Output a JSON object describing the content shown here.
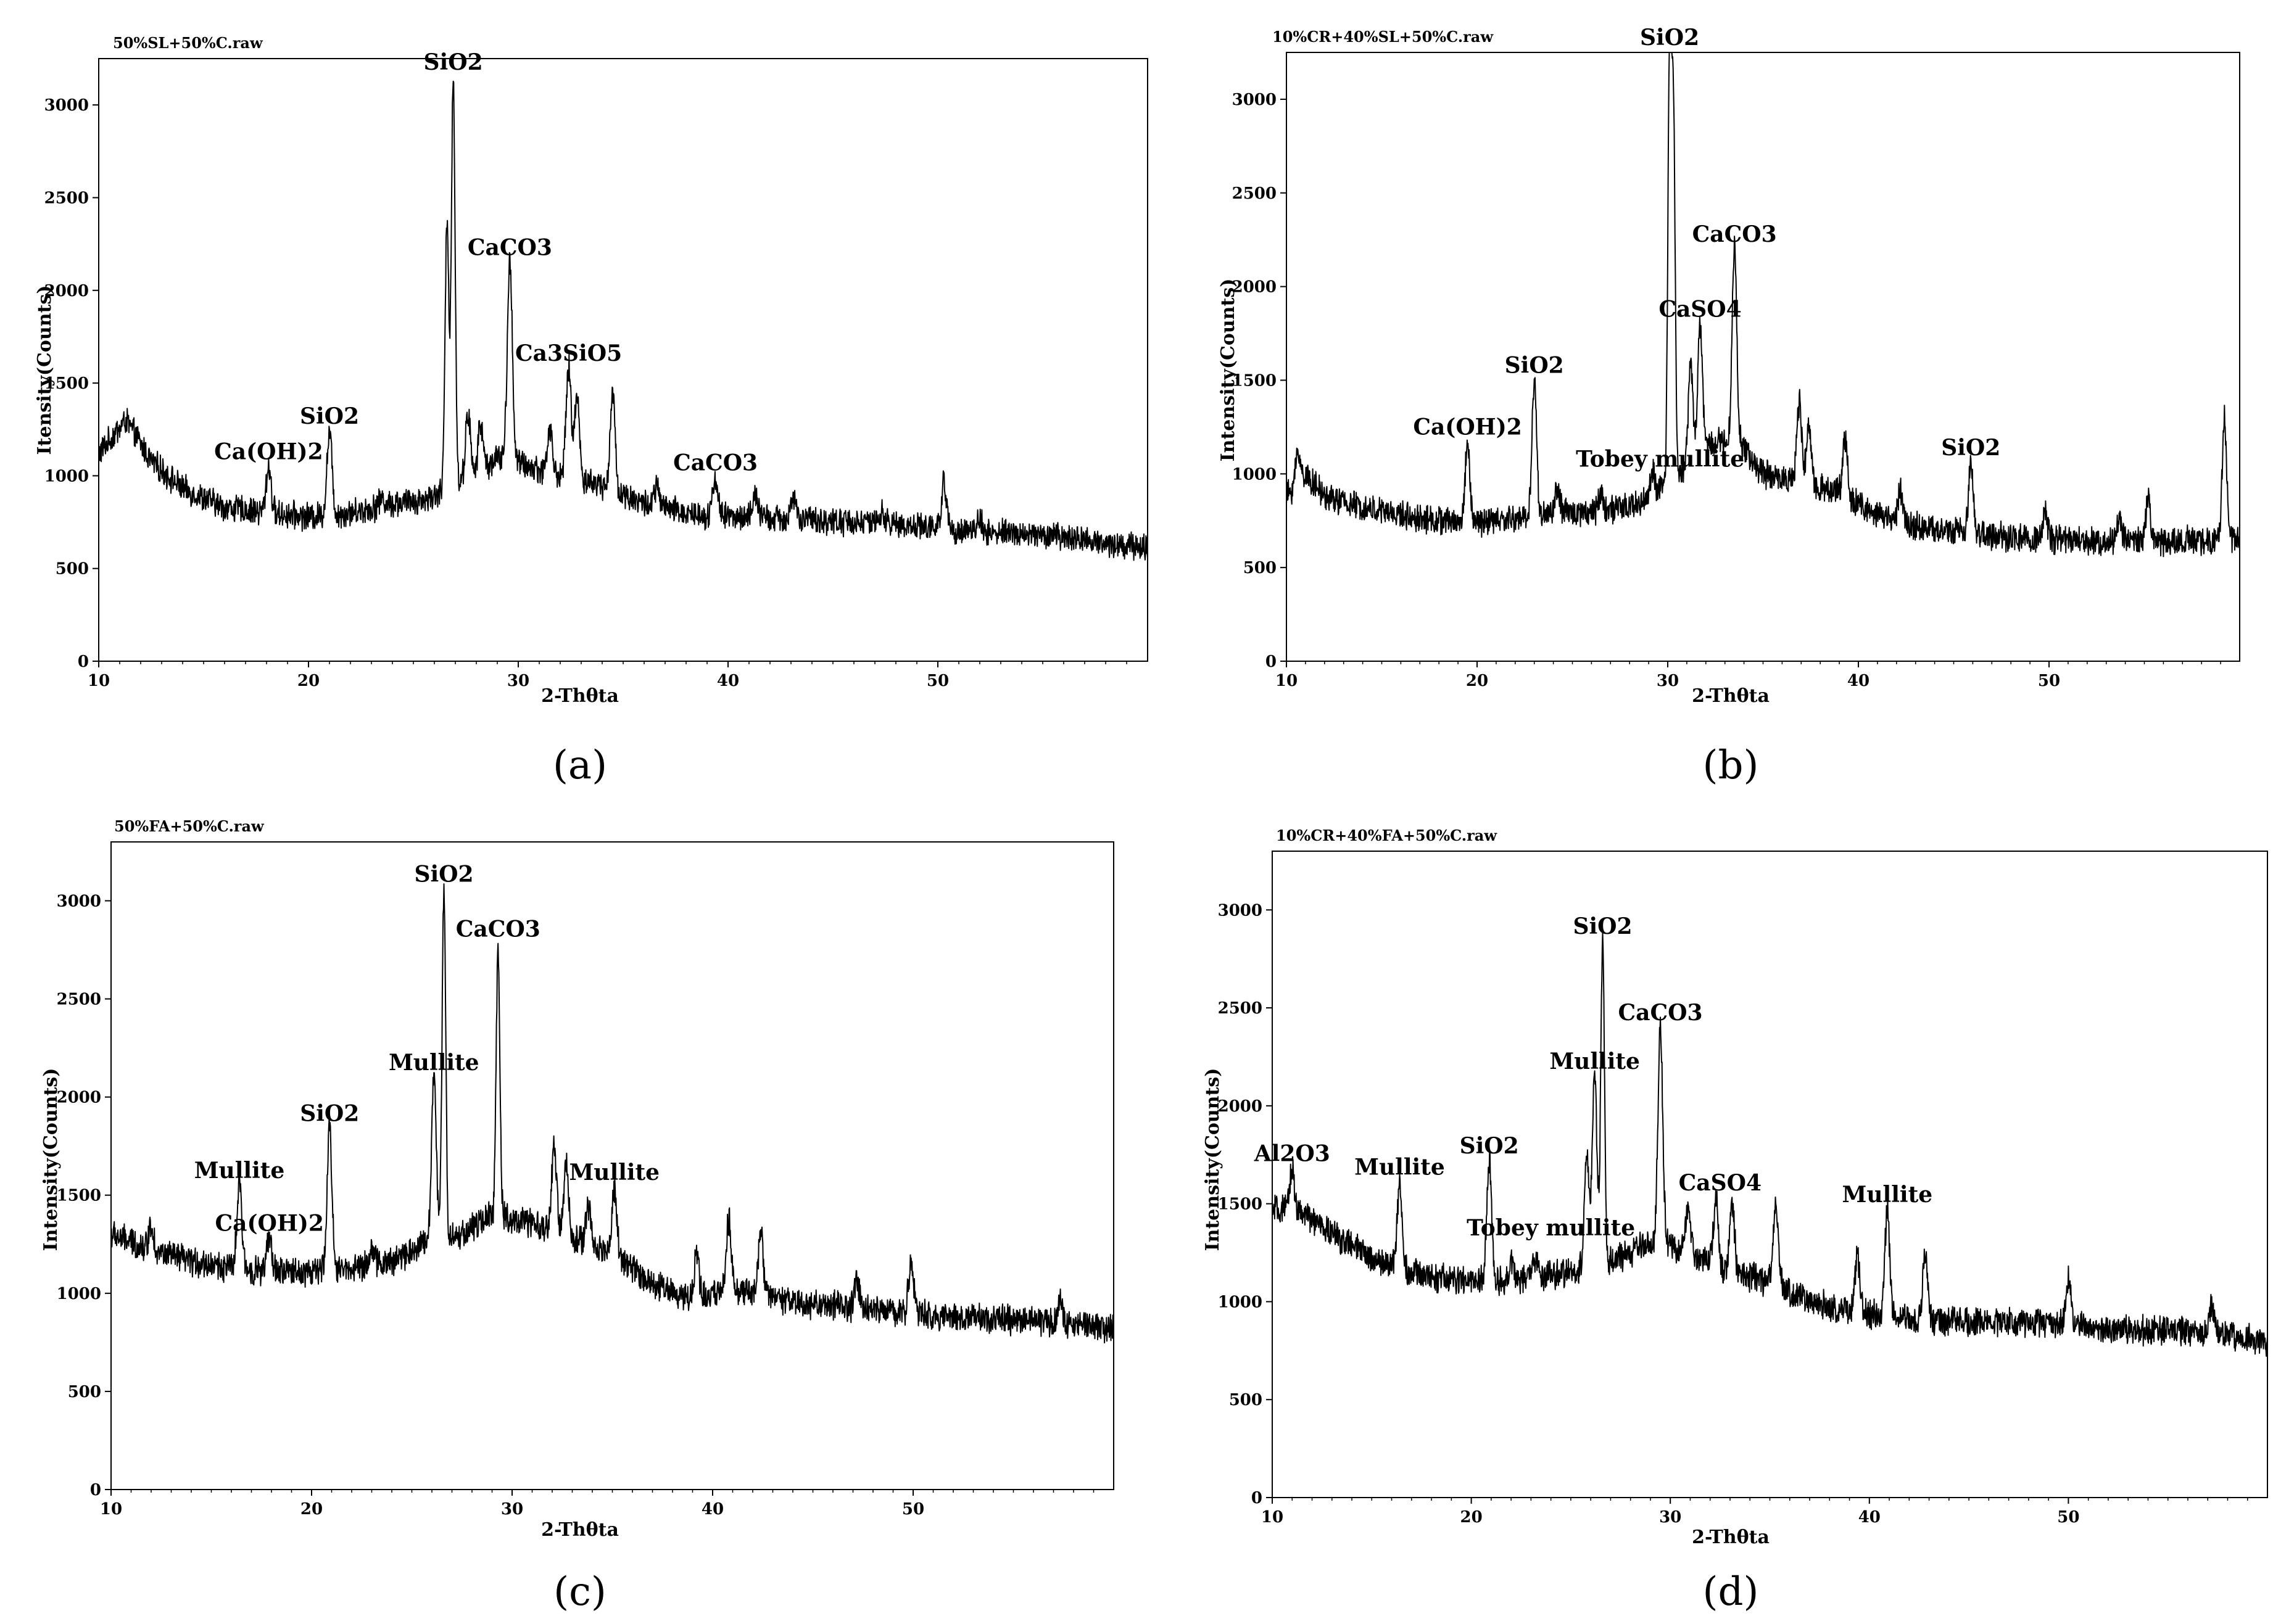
{
  "chart_data": [
    {
      "type": "line",
      "panel_label": "(a)",
      "title": "50%SL+50%C.raw",
      "xlabel": "2-Thθta",
      "ylabel": "Itensity(Counts)",
      "xlim": [
        10,
        60
      ],
      "ylim": [
        0,
        3250
      ],
      "xticks": [
        10,
        20,
        30,
        40,
        50
      ],
      "yticks": [
        0,
        500,
        1000,
        1500,
        2000,
        2500,
        3000
      ],
      "baseline": [
        [
          10,
          1120
        ],
        [
          11.3,
          1300
        ],
        [
          12.5,
          1080
        ],
        [
          14,
          930
        ],
        [
          16,
          830
        ],
        [
          18,
          800
        ],
        [
          20,
          780
        ],
        [
          22,
          800
        ],
        [
          24,
          850
        ],
        [
          25.5,
          870
        ],
        [
          26.5,
          920
        ],
        [
          28,
          1000
        ],
        [
          29,
          1100
        ],
        [
          30.5,
          1050
        ],
        [
          32,
          1000
        ],
        [
          34,
          950
        ],
        [
          36,
          850
        ],
        [
          38,
          800
        ],
        [
          40,
          780
        ],
        [
          44,
          760
        ],
        [
          48,
          740
        ],
        [
          52,
          700
        ],
        [
          56,
          670
        ],
        [
          60,
          610
        ]
      ],
      "peaks": [
        [
          18.1,
          1050
        ],
        [
          21.0,
          1240
        ],
        [
          23.5,
          880
        ],
        [
          26.6,
          2350
        ],
        [
          26.9,
          3150
        ],
        [
          27.6,
          1340
        ],
        [
          28.2,
          1280
        ],
        [
          29.6,
          2150
        ],
        [
          31.5,
          1250
        ],
        [
          32.4,
          1580
        ],
        [
          32.8,
          1420
        ],
        [
          34.5,
          1430
        ],
        [
          36.6,
          940
        ],
        [
          39.4,
          990
        ],
        [
          41.3,
          900
        ],
        [
          43.1,
          880
        ],
        [
          47.3,
          800
        ],
        [
          50.3,
          960
        ],
        [
          52,
          760
        ]
      ],
      "annotations": [
        {
          "text": "SiO2",
          "x": 26.9,
          "y": 3150
        },
        {
          "text": "CaCO3",
          "x": 29.6,
          "y": 2150
        },
        {
          "text": "Ca3SiO5",
          "x": 32.4,
          "y": 1580
        },
        {
          "text": "Ca(OH)2",
          "x": 18.1,
          "y": 1050
        },
        {
          "text": "SiO2",
          "x": 21.0,
          "y": 1240
        },
        {
          "text": "CaCO3",
          "x": 39.4,
          "y": 990
        }
      ]
    },
    {
      "type": "line",
      "panel_label": "(b)",
      "title": "10%CR+40%SL+50%C.raw",
      "xlabel": "2-Thθta",
      "ylabel": "Intensity(Counts)",
      "xlim": [
        10,
        60
      ],
      "ylim": [
        0,
        3250
      ],
      "xticks": [
        10,
        20,
        30,
        40,
        50
      ],
      "yticks": [
        0,
        500,
        1000,
        1500,
        2000,
        2500,
        3000
      ],
      "baseline": [
        [
          10,
          880
        ],
        [
          11,
          1000
        ],
        [
          12,
          880
        ],
        [
          14,
          820
        ],
        [
          16,
          780
        ],
        [
          18,
          750
        ],
        [
          20,
          740
        ],
        [
          22,
          760
        ],
        [
          24,
          790
        ],
        [
          26,
          800
        ],
        [
          28,
          820
        ],
        [
          29.5,
          900
        ],
        [
          30.5,
          1000
        ],
        [
          32,
          1150
        ],
        [
          33.5,
          1200
        ],
        [
          35,
          1000
        ],
        [
          37,
          960
        ],
        [
          39,
          900
        ],
        [
          41,
          780
        ],
        [
          44,
          700
        ],
        [
          48,
          660
        ],
        [
          52,
          640
        ],
        [
          56,
          640
        ],
        [
          60,
          650
        ]
      ],
      "peaks": [
        [
          10.6,
          1120
        ],
        [
          19.5,
          1170
        ],
        [
          23.0,
          1500
        ],
        [
          24.2,
          920
        ],
        [
          26.5,
          900
        ],
        [
          29.2,
          1000
        ],
        [
          30.1,
          3250
        ],
        [
          30.3,
          2900
        ],
        [
          31.2,
          1600
        ],
        [
          31.7,
          1800
        ],
        [
          33.5,
          2200
        ],
        [
          36.9,
          1380
        ],
        [
          37.4,
          1250
        ],
        [
          39.3,
          1200
        ],
        [
          42.2,
          920
        ],
        [
          45.9,
          1060
        ],
        [
          49.8,
          800
        ],
        [
          53.7,
          760
        ],
        [
          55.2,
          860
        ],
        [
          59.2,
          1290
        ]
      ],
      "annotations": [
        {
          "text": "SiO2",
          "x": 30.1,
          "y": 3250
        },
        {
          "text": "CaCO3",
          "x": 33.5,
          "y": 2200
        },
        {
          "text": "CaSO4",
          "x": 31.7,
          "y": 1800
        },
        {
          "text": "SiO2",
          "x": 23.0,
          "y": 1500
        },
        {
          "text": "Ca(OH)2",
          "x": 19.5,
          "y": 1170
        },
        {
          "text": "Tobey mullite",
          "x": 29.6,
          "y": 1000
        },
        {
          "text": "SiO2",
          "x": 45.9,
          "y": 1060
        }
      ]
    },
    {
      "type": "line",
      "panel_label": "(c)",
      "title": "50%FA+50%C.raw",
      "xlabel": "2-Thθta",
      "ylabel": "Intensity(Counts)",
      "xlim": [
        10,
        60
      ],
      "ylim": [
        0,
        3300
      ],
      "xticks": [
        10,
        20,
        30,
        40,
        50
      ],
      "yticks": [
        0,
        500,
        1000,
        1500,
        2000,
        2500,
        3000
      ],
      "baseline": [
        [
          10,
          1300
        ],
        [
          12,
          1220
        ],
        [
          14,
          1160
        ],
        [
          16,
          1130
        ],
        [
          18,
          1110
        ],
        [
          20,
          1110
        ],
        [
          22,
          1130
        ],
        [
          24,
          1160
        ],
        [
          25.5,
          1250
        ],
        [
          27.5,
          1300
        ],
        [
          29,
          1400
        ],
        [
          31,
          1350
        ],
        [
          33,
          1280
        ],
        [
          35,
          1200
        ],
        [
          37,
          1050
        ],
        [
          39,
          970
        ],
        [
          41,
          1020
        ],
        [
          44,
          950
        ],
        [
          48,
          920
        ],
        [
          52,
          880
        ],
        [
          56,
          860
        ],
        [
          60,
          820
        ]
      ],
      "peaks": [
        [
          12,
          1350
        ],
        [
          16.4,
          1550
        ],
        [
          17.9,
          1280
        ],
        [
          20.9,
          1840
        ],
        [
          23,
          1230
        ],
        [
          26.1,
          2100
        ],
        [
          26.6,
          3060
        ],
        [
          29.3,
          2780
        ],
        [
          32.1,
          1750
        ],
        [
          32.7,
          1650
        ],
        [
          33.8,
          1450
        ],
        [
          35.1,
          1540
        ],
        [
          39.2,
          1200
        ],
        [
          40.8,
          1380
        ],
        [
          42.4,
          1330
        ],
        [
          47.2,
          1050
        ],
        [
          49.9,
          1170
        ],
        [
          57.3,
          980
        ]
      ],
      "annotations": [
        {
          "text": "SiO2",
          "x": 26.6,
          "y": 3060
        },
        {
          "text": "CaCO3",
          "x": 29.3,
          "y": 2780
        },
        {
          "text": "Mullite",
          "x": 26.1,
          "y": 2100
        },
        {
          "text": "SiO2",
          "x": 20.9,
          "y": 1840
        },
        {
          "text": "Mullite",
          "x": 16.4,
          "y": 1550
        },
        {
          "text": "Ca(OH)2",
          "x": 17.9,
          "y": 1280
        },
        {
          "text": "Mullite",
          "x": 35.1,
          "y": 1540
        }
      ]
    },
    {
      "type": "line",
      "panel_label": "(d)",
      "title": "10%CR+40%FA+50%C.raw",
      "xlabel": "2-Thθta",
      "ylabel": "Intensity(Counts)",
      "xlim": [
        10,
        60
      ],
      "ylim": [
        0,
        3300
      ],
      "xticks": [
        10,
        20,
        30,
        40,
        50
      ],
      "yticks": [
        0,
        500,
        1000,
        1500,
        2000,
        2500,
        3000
      ],
      "baseline": [
        [
          10,
          1470
        ],
        [
          11.5,
          1450
        ],
        [
          13,
          1350
        ],
        [
          15,
          1220
        ],
        [
          17,
          1150
        ],
        [
          19,
          1110
        ],
        [
          21,
          1100
        ],
        [
          23,
          1120
        ],
        [
          25,
          1150
        ],
        [
          27,
          1200
        ],
        [
          29,
          1300
        ],
        [
          31,
          1250
        ],
        [
          33,
          1150
        ],
        [
          35,
          1100
        ],
        [
          37,
          1000
        ],
        [
          39,
          950
        ],
        [
          41,
          920
        ],
        [
          44,
          900
        ],
        [
          48,
          900
        ],
        [
          52,
          860
        ],
        [
          56,
          850
        ],
        [
          60,
          800
        ]
      ],
      "peaks": [
        [
          11.0,
          1680
        ],
        [
          16.4,
          1610
        ],
        [
          20.9,
          1720
        ],
        [
          22,
          1200
        ],
        [
          23.2,
          1230
        ],
        [
          25.8,
          1750
        ],
        [
          26.2,
          2150
        ],
        [
          26.6,
          2840
        ],
        [
          29.5,
          2400
        ],
        [
          30.9,
          1480
        ],
        [
          32.3,
          1530
        ],
        [
          33.1,
          1520
        ],
        [
          35.3,
          1500
        ],
        [
          39.4,
          1240
        ],
        [
          40.9,
          1470
        ],
        [
          42.8,
          1230
        ],
        [
          50,
          1120
        ],
        [
          57.2,
          970
        ]
      ],
      "annotations": [
        {
          "text": "SiO2",
          "x": 26.6,
          "y": 2840
        },
        {
          "text": "CaCO3",
          "x": 29.5,
          "y": 2400
        },
        {
          "text": "Mullite",
          "x": 26.2,
          "y": 2150
        },
        {
          "text": "Al2O3",
          "x": 11.0,
          "y": 1680
        },
        {
          "text": "Mullite",
          "x": 16.4,
          "y": 1610
        },
        {
          "text": "SiO2",
          "x": 20.9,
          "y": 1720
        },
        {
          "text": "CaSO4",
          "x": 32.5,
          "y": 1530
        },
        {
          "text": "Tobey mullite",
          "x": 24.0,
          "y": 1300
        },
        {
          "text": "Mullite",
          "x": 40.9,
          "y": 1470
        }
      ]
    }
  ]
}
